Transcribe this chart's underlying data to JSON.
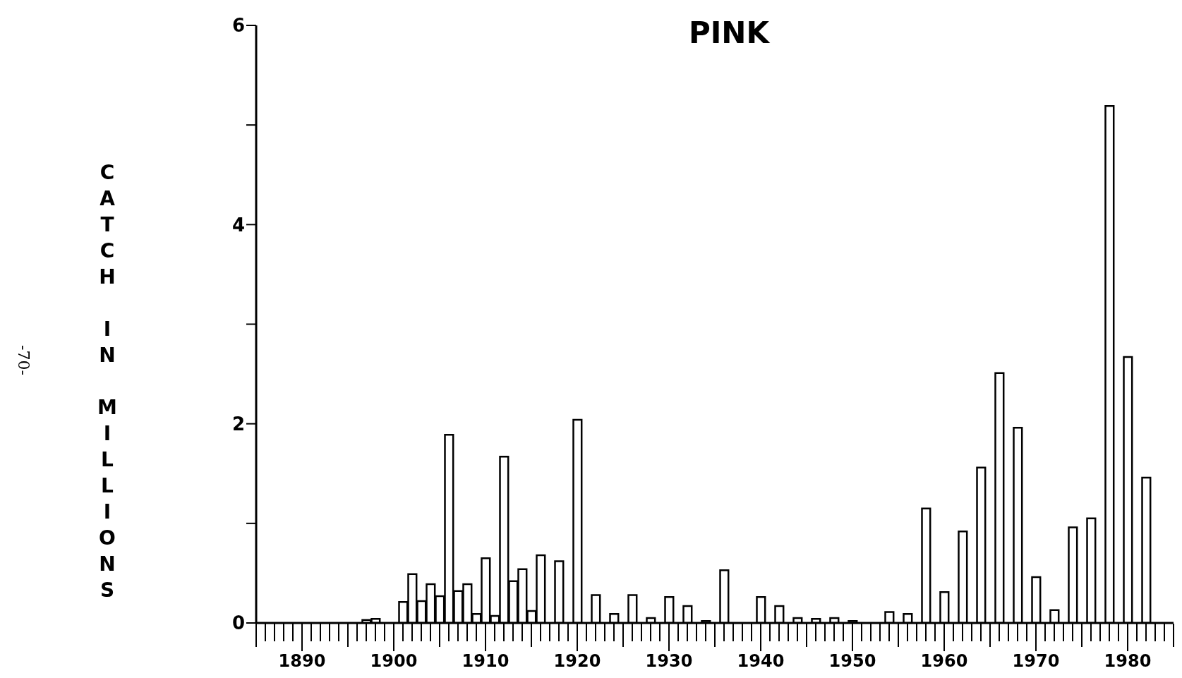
{
  "chart_data": {
    "type": "bar",
    "title": "PINK",
    "ylabel": "CATCH IN MILLIONS",
    "annotations": [
      "-70-"
    ],
    "x": [
      1897,
      1898,
      1901,
      1902,
      1903,
      1904,
      1905,
      1906,
      1907,
      1908,
      1909,
      1910,
      1911,
      1912,
      1913,
      1914,
      1915,
      1916,
      1918,
      1920,
      1922,
      1924,
      1926,
      1928,
      1930,
      1932,
      1934,
      1936,
      1940,
      1942,
      1944,
      1946,
      1948,
      1950,
      1954,
      1956,
      1958,
      1960,
      1962,
      1964,
      1966,
      1968,
      1970,
      1972,
      1974,
      1976,
      1978,
      1980,
      1982
    ],
    "values": [
      0.03,
      0.04,
      0.21,
      0.49,
      0.22,
      0.39,
      0.27,
      1.89,
      0.32,
      0.39,
      0.09,
      0.65,
      0.07,
      1.67,
      0.42,
      0.54,
      0.12,
      0.68,
      0.62,
      2.04,
      0.28,
      0.09,
      0.28,
      0.05,
      0.26,
      0.17,
      0.02,
      0.53,
      0.26,
      0.17,
      0.05,
      0.04,
      0.05,
      0.02,
      0.11,
      0.09,
      1.15,
      0.31,
      0.92,
      1.56,
      2.51,
      1.96,
      0.46,
      0.13,
      0.96,
      1.05,
      5.19,
      2.67,
      1.46
    ],
    "color": "#ffffff",
    "xlim": [
      1885,
      1985
    ],
    "xticks": [
      1890,
      1900,
      1910,
      1920,
      1930,
      1940,
      1950,
      1960,
      1970,
      1980
    ],
    "ylim": [
      0,
      6
    ],
    "yticks": [
      0,
      {
        "value": 1,
        "label": null
      },
      2,
      {
        "value": 3,
        "label": null
      },
      4,
      {
        "value": 5,
        "label": null
      },
      6
    ],
    "grid": false,
    "legend": false
  }
}
